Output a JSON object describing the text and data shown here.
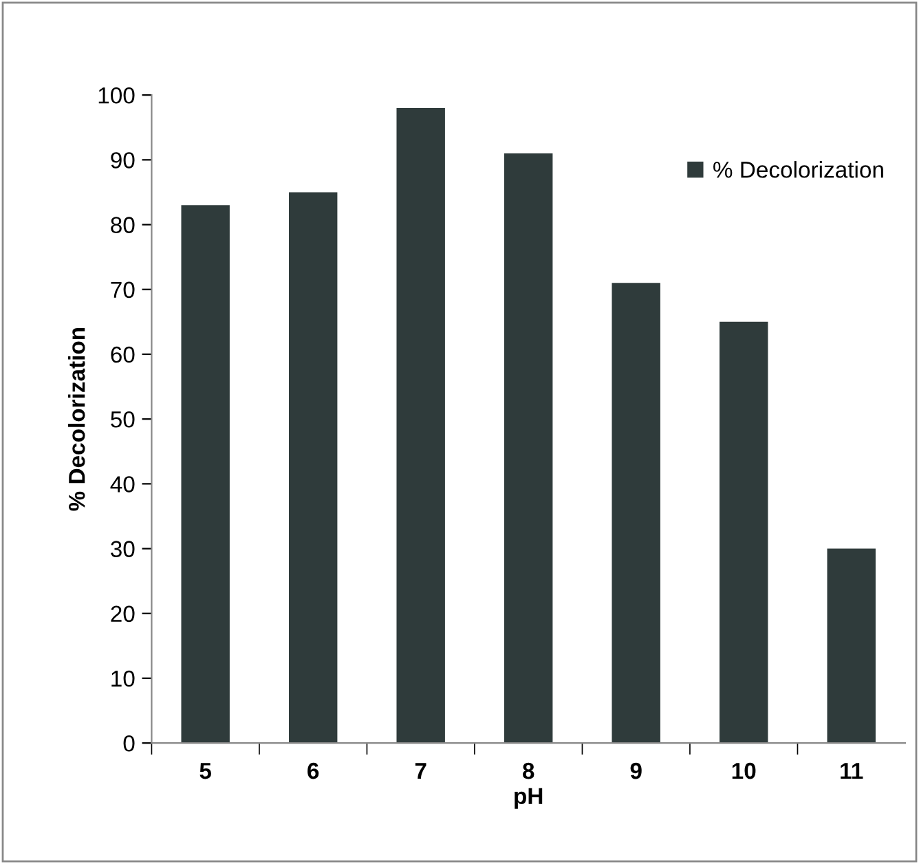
{
  "chart_data": {
    "type": "bar",
    "xlabel": "pH",
    "ylabel": "% Decolorization",
    "categories": [
      "5",
      "6",
      "7",
      "8",
      "9",
      "10",
      "11"
    ],
    "series": [
      {
        "name": "% Decolorization",
        "color": "#2f3b3b",
        "values": [
          83,
          85,
          98,
          91,
          71,
          65,
          30
        ]
      }
    ],
    "ylim": [
      0,
      100
    ],
    "yticks": [
      0,
      10,
      20,
      30,
      40,
      50,
      60,
      70,
      80,
      90,
      100
    ],
    "grid": false,
    "legend": "top right"
  }
}
